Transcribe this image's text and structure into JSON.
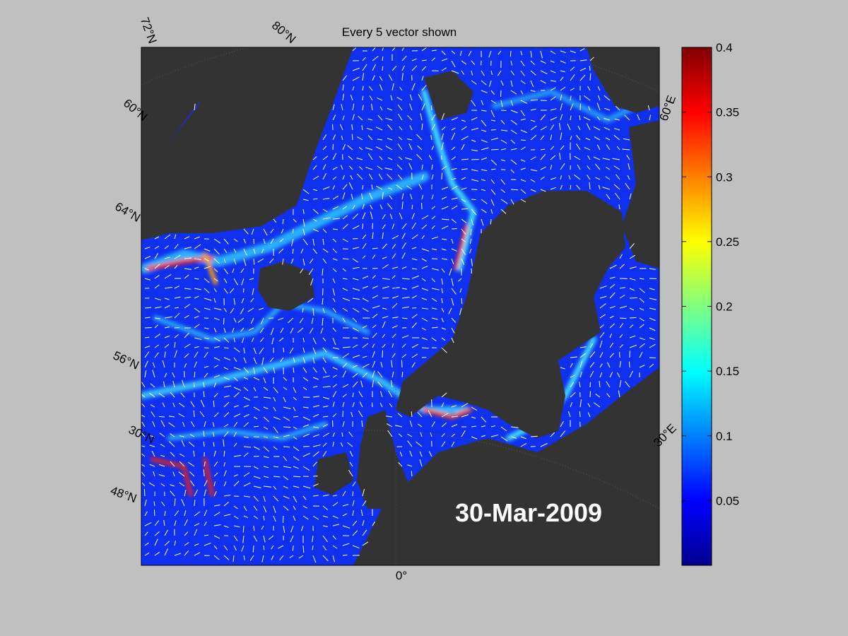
{
  "title": "Every 5 vector shown",
  "date_label": "30-Mar-2009",
  "graticule_labels": [
    "72°N",
    "80°N",
    "60°N",
    "64°N",
    "56°N",
    "30°N",
    "48°N",
    "0°",
    "30°E",
    "60°E"
  ],
  "colorbar": {
    "clim": [
      0,
      0.4
    ],
    "ticks": [
      0.05,
      0.1,
      0.15,
      0.2,
      0.25,
      0.3,
      0.35,
      0.4
    ]
  }
}
